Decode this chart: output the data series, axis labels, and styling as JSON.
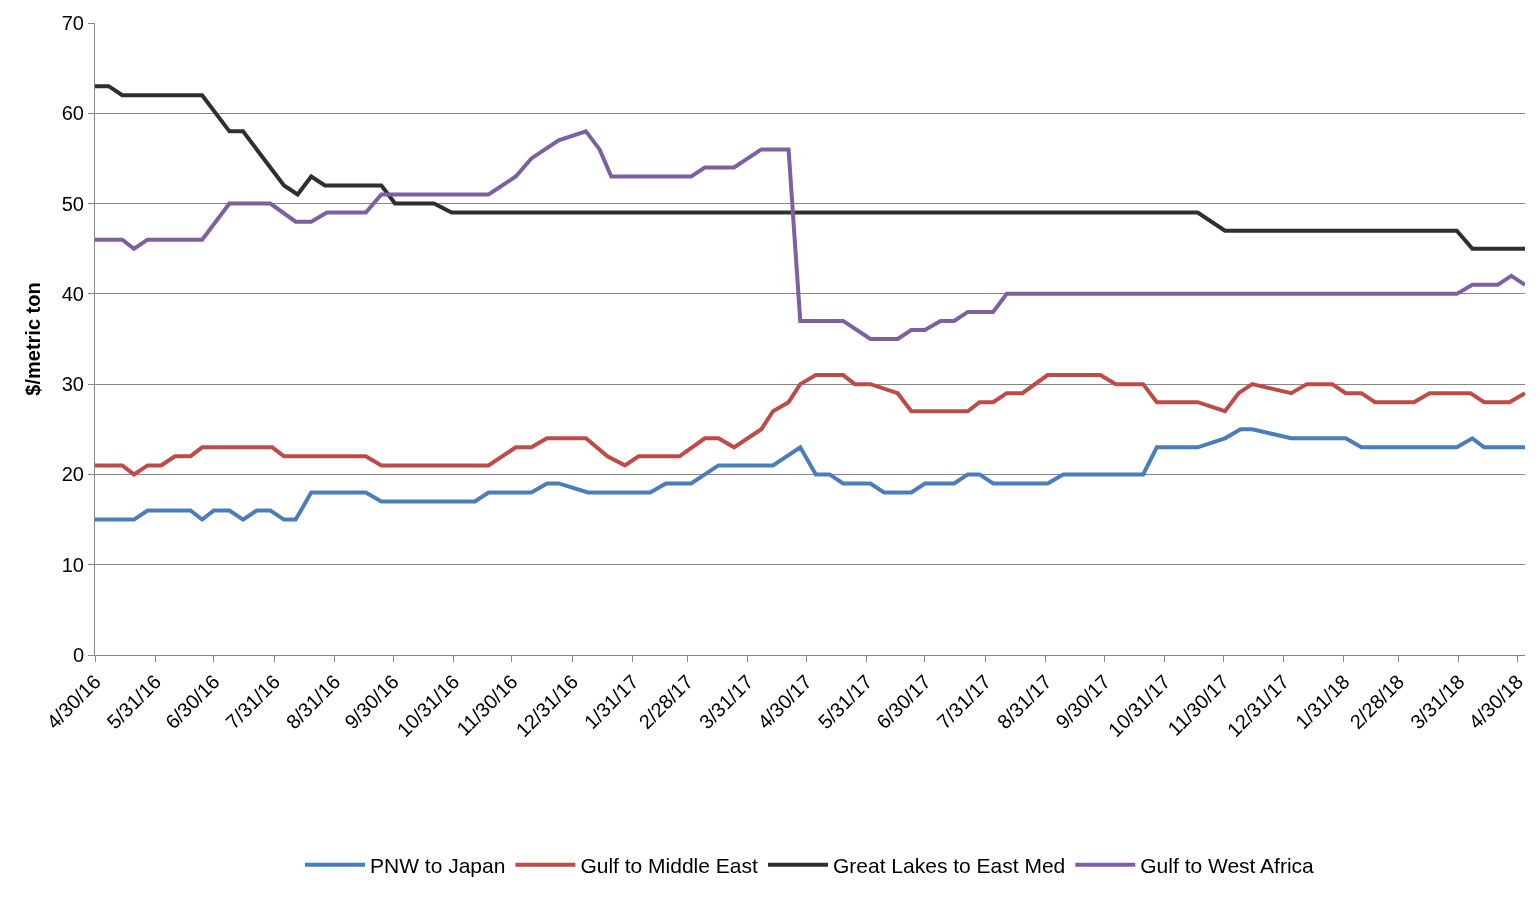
{
  "chart_data": {
    "type": "line",
    "ylabel": "$/metric ton",
    "legend": "bottom",
    "grid": "y",
    "marker": "none",
    "line_style": "solid",
    "ylim": [
      0,
      70
    ],
    "yticks": [
      0,
      10,
      20,
      30,
      40,
      50,
      60,
      70
    ],
    "xlim": [
      "2016-04-30",
      "2018-05-04"
    ],
    "xticks": [
      {
        "value": "2016-04-30",
        "label": "4/30/16"
      },
      {
        "value": "2016-05-31",
        "label": "5/31/16"
      },
      {
        "value": "2016-06-30",
        "label": "6/30/16"
      },
      {
        "value": "2016-07-31",
        "label": "7/31/16"
      },
      {
        "value": "2016-08-31",
        "label": "8/31/16"
      },
      {
        "value": "2016-09-30",
        "label": "9/30/16"
      },
      {
        "value": "2016-10-31",
        "label": "10/31/16"
      },
      {
        "value": "2016-11-30",
        "label": "11/30/16"
      },
      {
        "value": "2016-12-31",
        "label": "12/31/16"
      },
      {
        "value": "2017-01-31",
        "label": "1/31/17"
      },
      {
        "value": "2017-02-28",
        "label": "2/28/17"
      },
      {
        "value": "2017-03-31",
        "label": "3/31/17"
      },
      {
        "value": "2017-04-30",
        "label": "4/30/17"
      },
      {
        "value": "2017-05-31",
        "label": "5/31/17"
      },
      {
        "value": "2017-06-30",
        "label": "6/30/17"
      },
      {
        "value": "2017-07-31",
        "label": "7/31/17"
      },
      {
        "value": "2017-08-31",
        "label": "8/31/17"
      },
      {
        "value": "2017-09-30",
        "label": "9/30/17"
      },
      {
        "value": "2017-10-31",
        "label": "10/31/17"
      },
      {
        "value": "2017-11-30",
        "label": "11/30/17"
      },
      {
        "value": "2017-12-31",
        "label": "12/31/17"
      },
      {
        "value": "2018-01-31",
        "label": "1/31/18"
      },
      {
        "value": "2018-02-28",
        "label": "2/28/18"
      },
      {
        "value": "2018-03-31",
        "label": "3/31/18"
      },
      {
        "value": "2018-04-30",
        "label": "4/30/18"
      }
    ],
    "series": [
      {
        "name": "PNW to Japan",
        "color": "#4a7ebb",
        "x": [
          "2016-04-30",
          "2016-05-20",
          "2016-05-27",
          "2016-06-18",
          "2016-06-24",
          "2016-06-30",
          "2016-07-08",
          "2016-07-15",
          "2016-07-22",
          "2016-07-29",
          "2016-08-05",
          "2016-08-11",
          "2016-08-19",
          "2016-09-16",
          "2016-09-24",
          "2016-11-11",
          "2016-11-18",
          "2016-12-10",
          "2016-12-18",
          "2016-12-24",
          "2017-01-08",
          "2017-02-09",
          "2017-02-17",
          "2017-03-02",
          "2017-03-16",
          "2017-04-13",
          "2017-04-27",
          "2017-05-05",
          "2017-05-12",
          "2017-05-19",
          "2017-06-02",
          "2017-06-09",
          "2017-06-23",
          "2017-06-30",
          "2017-07-15",
          "2017-07-22",
          "2017-07-28",
          "2017-08-04",
          "2017-09-01",
          "2017-09-09",
          "2017-10-20",
          "2017-10-27",
          "2017-11-17",
          "2017-12-01",
          "2017-12-09",
          "2017-12-15",
          "2018-01-04",
          "2018-02-01",
          "2018-02-09",
          "2018-03-30",
          "2018-04-07",
          "2018-04-13",
          "2018-05-04"
        ],
        "values": [
          15,
          15,
          16,
          16,
          15,
          16,
          16,
          15,
          16,
          16,
          15,
          15,
          18,
          18,
          17,
          17,
          18,
          18,
          19,
          19,
          18,
          18,
          19,
          19,
          21,
          21,
          23,
          20,
          20,
          19,
          19,
          18,
          18,
          19,
          19,
          20,
          20,
          19,
          19,
          20,
          20,
          23,
          23,
          24,
          25,
          25,
          24,
          24,
          23,
          23,
          24,
          23,
          23
        ]
      },
      {
        "name": "Gulf to Middle East",
        "color": "#be4b48",
        "x": [
          "2016-04-30",
          "2016-05-14",
          "2016-05-20",
          "2016-05-27",
          "2016-06-03",
          "2016-06-10",
          "2016-06-18",
          "2016-06-24",
          "2016-07-30",
          "2016-08-05",
          "2016-09-16",
          "2016-09-24",
          "2016-11-18",
          "2016-12-02",
          "2016-12-10",
          "2016-12-18",
          "2017-01-07",
          "2017-01-18",
          "2017-01-27",
          "2017-02-03",
          "2017-02-24",
          "2017-03-09",
          "2017-03-16",
          "2017-03-24",
          "2017-04-07",
          "2017-04-13",
          "2017-04-21",
          "2017-04-27",
          "2017-05-05",
          "2017-05-19",
          "2017-05-25",
          "2017-06-02",
          "2017-06-16",
          "2017-06-23",
          "2017-07-22",
          "2017-07-28",
          "2017-08-04",
          "2017-08-11",
          "2017-08-19",
          "2017-09-01",
          "2017-09-28",
          "2017-10-06",
          "2017-10-20",
          "2017-10-27",
          "2017-11-17",
          "2017-12-01",
          "2017-12-08",
          "2017-12-15",
          "2018-01-04",
          "2018-01-12",
          "2018-01-25",
          "2018-02-01",
          "2018-02-09",
          "2018-02-16",
          "2018-03-08",
          "2018-03-16",
          "2018-04-06",
          "2018-04-13",
          "2018-04-26",
          "2018-05-04"
        ],
        "values": [
          21,
          21,
          20,
          21,
          21,
          22,
          22,
          23,
          23,
          22,
          22,
          21,
          21,
          23,
          23,
          24,
          24,
          22,
          21,
          22,
          22,
          24,
          24,
          23,
          25,
          27,
          28,
          30,
          31,
          31,
          30,
          30,
          29,
          27,
          27,
          28,
          28,
          29,
          29,
          31,
          31,
          30,
          30,
          28,
          28,
          27,
          29,
          30,
          29,
          30,
          30,
          29,
          29,
          28,
          28,
          29,
          29,
          28,
          28,
          29
        ]
      },
      {
        "name": "Great Lakes to East Med",
        "color": "#2f2f2f",
        "x": [
          "2016-04-30",
          "2016-05-07",
          "2016-05-14",
          "2016-06-24",
          "2016-07-08",
          "2016-07-15",
          "2016-08-05",
          "2016-08-12",
          "2016-08-19",
          "2016-08-26",
          "2016-09-24",
          "2016-10-01",
          "2016-10-21",
          "2016-10-30",
          "2017-11-17",
          "2017-12-01",
          "2018-03-30",
          "2018-04-07",
          "2018-05-04"
        ],
        "values": [
          63,
          63,
          62,
          62,
          58,
          58,
          52,
          51,
          53,
          52,
          52,
          50,
          50,
          49,
          49,
          47,
          47,
          45,
          45
        ]
      },
      {
        "name": "Gulf to West Africa",
        "color": "#7d60a0",
        "x": [
          "2016-04-30",
          "2016-05-14",
          "2016-05-20",
          "2016-05-27",
          "2016-06-24",
          "2016-07-08",
          "2016-07-29",
          "2016-08-11",
          "2016-08-19",
          "2016-08-27",
          "2016-09-16",
          "2016-09-24",
          "2016-11-18",
          "2016-12-02",
          "2016-12-10",
          "2016-12-24",
          "2017-01-07",
          "2017-01-14",
          "2017-01-20",
          "2017-03-02",
          "2017-03-09",
          "2017-03-24",
          "2017-04-07",
          "2017-04-21",
          "2017-04-27",
          "2017-05-19",
          "2017-06-02",
          "2017-06-16",
          "2017-06-23",
          "2017-06-30",
          "2017-07-08",
          "2017-07-15",
          "2017-07-22",
          "2017-08-04",
          "2017-08-11",
          "2018-03-30",
          "2018-04-07",
          "2018-04-20",
          "2018-04-27",
          "2018-05-04"
        ],
        "values": [
          46,
          46,
          45,
          46,
          46,
          50,
          50,
          48,
          48,
          49,
          49,
          51,
          51,
          53,
          55,
          57,
          58,
          56,
          53,
          53,
          54,
          54,
          56,
          56,
          37,
          37,
          35,
          35,
          36,
          36,
          37,
          37,
          38,
          38,
          40,
          40,
          41,
          41,
          42,
          41
        ]
      }
    ]
  }
}
